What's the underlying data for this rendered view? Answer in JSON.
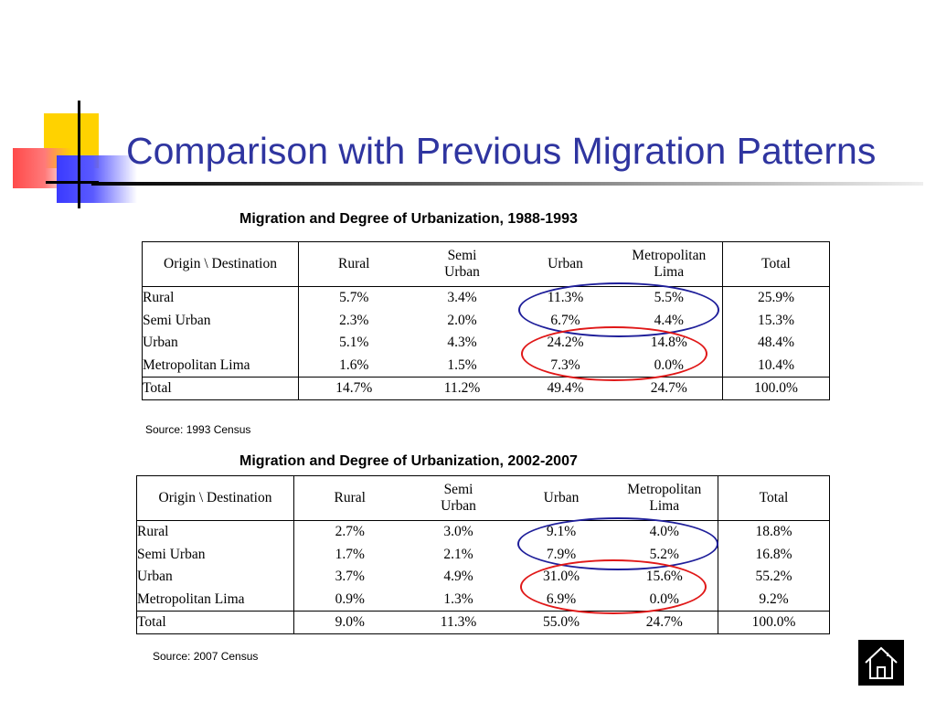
{
  "slide": {
    "title": "Comparison with Previous Migration Patterns"
  },
  "colors": {
    "title": "#2f35a0",
    "highlight_blue": "#1f1f9a",
    "highlight_red": "#e01818"
  },
  "tables": [
    {
      "title": "Migration and Degree of Urbanization, 1988-1993",
      "headers": [
        "Origin \\ Destination",
        "Rural",
        "Semi\nUrban",
        "Urban",
        "Metropolitan\nLima",
        "Total"
      ],
      "rows": [
        [
          "Rural",
          "5.7%",
          "3.4%",
          "11.3%",
          "5.5%",
          "25.9%"
        ],
        [
          "Semi Urban",
          "2.3%",
          "2.0%",
          "6.7%",
          "4.4%",
          "15.3%"
        ],
        [
          "Urban",
          "5.1%",
          "4.3%",
          "24.2%",
          "14.8%",
          "48.4%"
        ],
        [
          "Metropolitan Lima",
          "1.6%",
          "1.5%",
          "7.3%",
          "0.0%",
          "10.4%"
        ]
      ],
      "total": [
        "Total",
        "14.7%",
        "11.2%",
        "49.4%",
        "24.7%",
        "100.0%"
      ],
      "source": "Source: 1993 Census"
    },
    {
      "title": "Migration and Degree of Urbanization, 2002-2007",
      "headers": [
        "Origin \\ Destination",
        "Rural",
        "Semi\nUrban",
        "Urban",
        "Metropolitan\nLima",
        "Total"
      ],
      "rows": [
        [
          "Rural",
          "2.7%",
          "3.0%",
          "9.1%",
          "4.0%",
          "18.8%"
        ],
        [
          "Semi Urban",
          "1.7%",
          "2.1%",
          "7.9%",
          "5.2%",
          "16.8%"
        ],
        [
          "Urban",
          "3.7%",
          "4.9%",
          "31.0%",
          "15.6%",
          "55.2%"
        ],
        [
          "Metropolitan Lima",
          "0.9%",
          "1.3%",
          "6.9%",
          "0.0%",
          "9.2%"
        ]
      ],
      "total": [
        "Total",
        "9.0%",
        "11.3%",
        "55.0%",
        "24.7%",
        "100.0%"
      ],
      "source": "Source: 2007 Census"
    }
  ],
  "nav": {
    "home_icon": "home-icon"
  }
}
